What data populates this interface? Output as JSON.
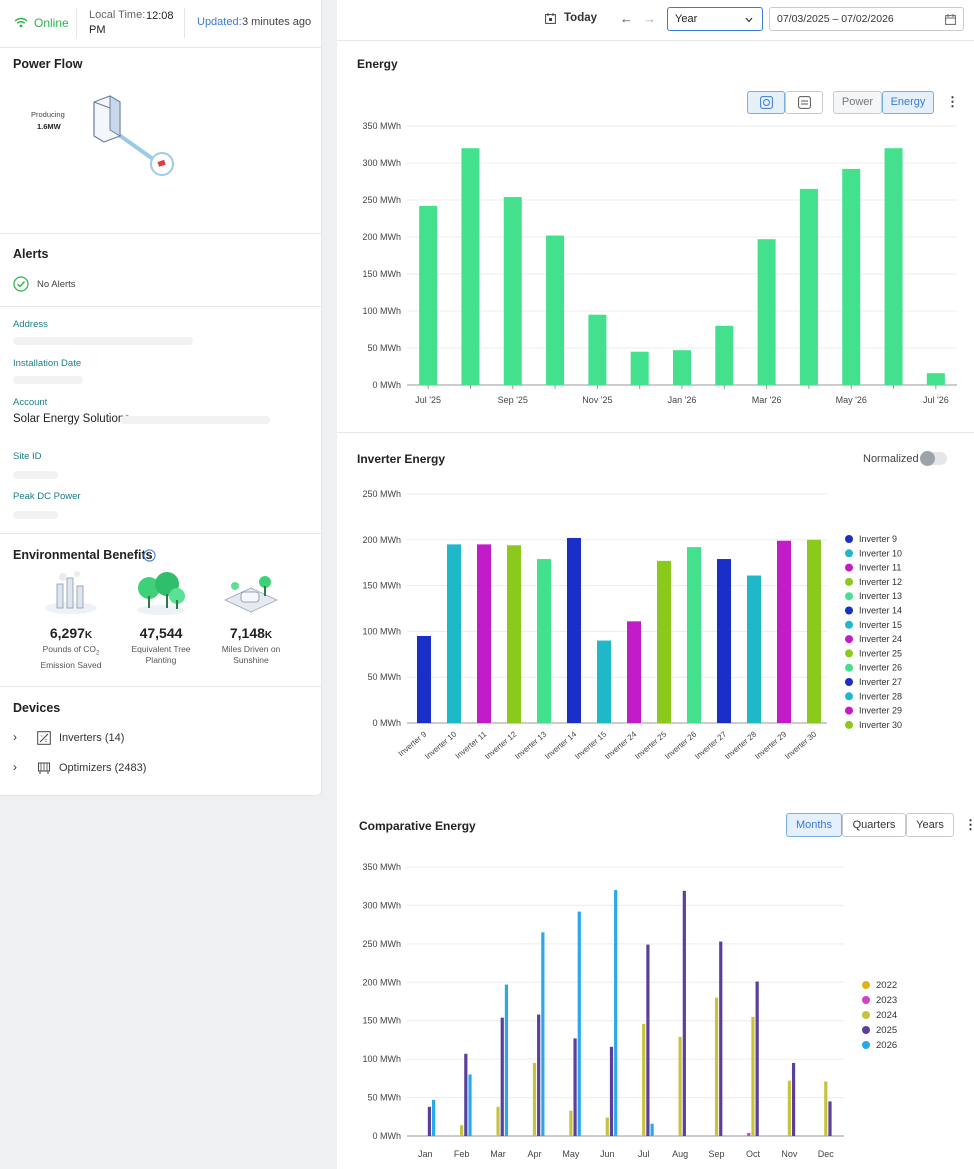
{
  "status": {
    "online_label": "Online",
    "local_time_label": "Local Time:",
    "local_time": "12:08 PM",
    "updated_label": "Updated:",
    "updated_value": "3 minutes ago"
  },
  "power_flow": {
    "title": "Power Flow",
    "producing_label": "Producing",
    "producing_value": "1.6MW"
  },
  "alerts": {
    "title": "Alerts",
    "status": "No Alerts"
  },
  "site_info": {
    "address_label": "Address",
    "installation_date_label": "Installation Date",
    "account_label": "Account",
    "account_value": "Solar Energy Solutions",
    "site_id_label": "Site ID",
    "peak_dc_label": "Peak DC Power"
  },
  "env": {
    "title": "Environmental Benefits",
    "items": [
      {
        "value": "6,297",
        "unit": "K",
        "caption1": "Pounds of CO",
        "sub": "2",
        "caption2": "Emission Saved"
      },
      {
        "value": "47,544",
        "unit": "",
        "caption1": "Equivalent Tree",
        "sub": "",
        "caption2": "Planting"
      },
      {
        "value": "7,148",
        "unit": "K",
        "caption1": "Miles Driven on",
        "sub": "",
        "caption2": "Sunshine"
      }
    ]
  },
  "devices": {
    "title": "Devices",
    "items": [
      {
        "label": "Inverters (14)"
      },
      {
        "label": "Optimizers (2483)"
      }
    ]
  },
  "toolbar": {
    "today": "Today",
    "period": "Year",
    "date_range": "07/03/2025 – 07/02/2026"
  },
  "energy_panel": {
    "title": "Energy",
    "power_btn": "Power",
    "energy_btn": "Energy"
  },
  "inverter_panel": {
    "title": "Inverter Energy",
    "normalized": "Normalized"
  },
  "comparative_panel": {
    "title": "Comparative Energy",
    "months": "Months",
    "quarters": "Quarters",
    "years": "Years"
  },
  "colors": {
    "accent": "#3a7bd5",
    "online": "#2bb24c",
    "energy_bar": "#43e08e"
  },
  "chart_data": [
    {
      "id": "energy",
      "type": "bar",
      "unit": "MWh",
      "yticks": [
        0,
        50,
        100,
        150,
        200,
        250,
        300,
        350
      ],
      "ylim": [
        0,
        350
      ],
      "categories": [
        "Jul '25",
        "Aug '25",
        "Sep '25",
        "Oct '25",
        "Nov '25",
        "Dec '25",
        "Jan '26",
        "Feb '26",
        "Mar '26",
        "Apr '26",
        "May '26",
        "Jun '26",
        "Jul '26"
      ],
      "xtick_labels": [
        "Jul '25",
        "",
        "Sep '25",
        "",
        "Nov '25",
        "",
        "Jan '26",
        "",
        "Mar '26",
        "",
        "May '26",
        "",
        "Jul '26"
      ],
      "values": [
        242,
        320,
        254,
        202,
        95,
        45,
        47,
        80,
        197,
        265,
        292,
        320,
        16
      ],
      "color": "#43e08e"
    },
    {
      "id": "inverter",
      "type": "bar",
      "unit": "MWh",
      "yticks": [
        0,
        50,
        100,
        150,
        200,
        250
      ],
      "ylim": [
        0,
        250
      ],
      "categories": [
        "Inverter 9",
        "Inverter 10",
        "Inverter 11",
        "Inverter 12",
        "Inverter 13",
        "Inverter 14",
        "Inverter 15",
        "Inverter 24",
        "Inverter 25",
        "Inverter 26",
        "Inverter 27",
        "Inverter 28",
        "Inverter 29",
        "Inverter 30"
      ],
      "values": [
        95,
        195,
        195,
        194,
        179,
        202,
        90,
        111,
        177,
        192,
        179,
        161,
        199,
        200
      ],
      "colors": [
        "#1a2ec8",
        "#1fb8c9",
        "#c21cc9",
        "#8bc91c",
        "#43e08e",
        "#1a2ec8",
        "#1fb8c9",
        "#c21cc9",
        "#8bc91c",
        "#43e08e",
        "#1a2ec8",
        "#1fb8c9",
        "#c21cc9",
        "#8bc91c"
      ],
      "legend": [
        "Inverter 9",
        "Inverter 10",
        "Inverter 11",
        "Inverter 12",
        "Inverter 13",
        "Inverter 14",
        "Inverter 15",
        "Inverter 24",
        "Inverter 25",
        "Inverter 26",
        "Inverter 27",
        "Inverter 28",
        "Inverter 29",
        "Inverter 30"
      ],
      "legend_position": "right"
    },
    {
      "id": "comparative",
      "type": "bar",
      "unit": "MWh",
      "yticks": [
        0,
        50,
        100,
        150,
        200,
        250,
        300,
        350
      ],
      "ylim": [
        0,
        350
      ],
      "categories": [
        "Jan",
        "Feb",
        "Mar",
        "Apr",
        "May",
        "Jun",
        "Jul",
        "Aug",
        "Sep",
        "Oct",
        "Nov",
        "Dec"
      ],
      "series": [
        {
          "name": "2022",
          "color": "#e0b21a",
          "values": [
            0,
            0,
            0,
            0,
            0,
            0,
            0,
            0,
            0,
            0,
            0,
            0
          ]
        },
        {
          "name": "2023",
          "color": "#d43fc9",
          "values": [
            0,
            0,
            0,
            0,
            0,
            0,
            0,
            0,
            0,
            4,
            0,
            0
          ]
        },
        {
          "name": "2024",
          "color": "#c6c43f",
          "values": [
            0,
            14,
            38,
            95,
            33,
            24,
            146,
            129,
            180,
            155,
            72,
            71
          ]
        },
        {
          "name": "2025",
          "color": "#5b3f9a",
          "values": [
            38,
            107,
            154,
            158,
            127,
            116,
            249,
            319,
            253,
            201,
            95,
            45
          ]
        },
        {
          "name": "2026",
          "color": "#2aa9e8",
          "values": [
            47,
            80,
            197,
            265,
            292,
            320,
            16,
            0,
            0,
            0,
            0,
            0
          ]
        }
      ],
      "legend_position": "right"
    }
  ]
}
